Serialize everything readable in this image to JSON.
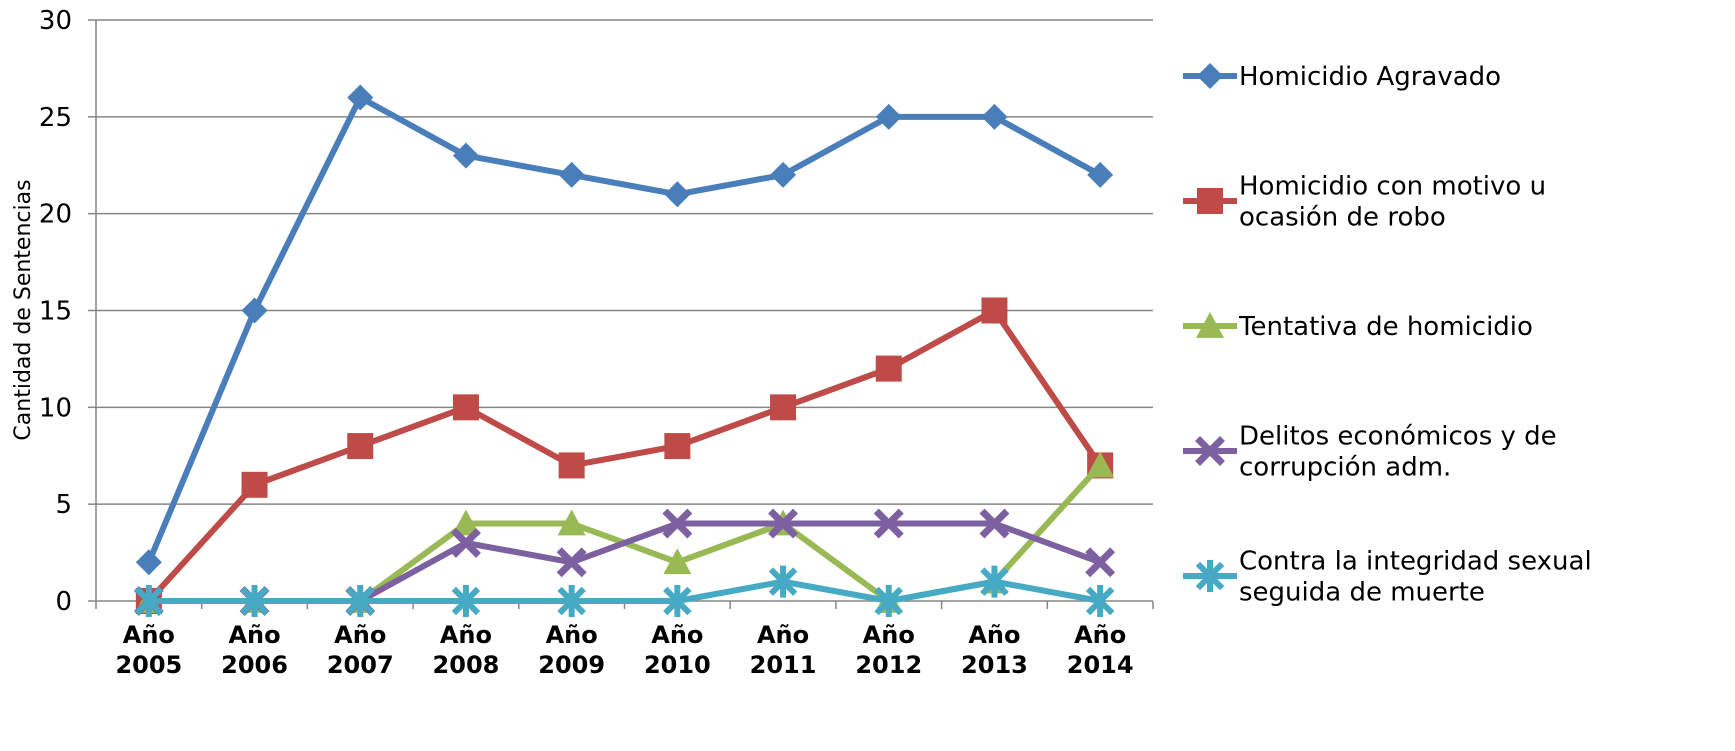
{
  "chart_data": {
    "type": "line",
    "title": "",
    "xlabel": "",
    "ylabel": "Cantidad de Sentencias",
    "ylim": [
      0,
      30
    ],
    "yticks": [
      0,
      5,
      10,
      15,
      20,
      25,
      30
    ],
    "grid": true,
    "legend_position": "right",
    "categories": [
      [
        "Año",
        "2005"
      ],
      [
        "Año",
        "2006"
      ],
      [
        "Año",
        "2007"
      ],
      [
        "Año",
        "2008"
      ],
      [
        "Año",
        "2009"
      ],
      [
        "Año",
        "2010"
      ],
      [
        "Año",
        "2011"
      ],
      [
        "Año",
        "2012"
      ],
      [
        "Año",
        "2013"
      ],
      [
        "Año",
        "2014"
      ]
    ],
    "series": [
      {
        "name": "Homicidio Agravado",
        "legend_lines": [
          "Homicidio Agravado"
        ],
        "color": "#4a7ebb",
        "marker": "diamond",
        "values": [
          2,
          15,
          26,
          23,
          22,
          21,
          22,
          25,
          25,
          22
        ]
      },
      {
        "name": "Homicidio con motivo u ocasión de robo",
        "legend_lines": [
          "Homicidio con motivo u",
          "ocasión de robo"
        ],
        "color": "#be4b48",
        "marker": "square",
        "values": [
          0,
          6,
          8,
          10,
          7,
          8,
          10,
          12,
          15,
          7
        ]
      },
      {
        "name": "Tentativa de homicidio",
        "legend_lines": [
          "Tentativa de homicidio"
        ],
        "color": "#98b954",
        "marker": "triangle",
        "values": [
          0,
          0,
          0,
          4,
          4,
          2,
          4,
          0,
          1,
          7
        ]
      },
      {
        "name": "Delitos económicos y de corrupción adm.",
        "legend_lines": [
          "Delitos económicos y de",
          "corrupción adm."
        ],
        "color": "#7d60a0",
        "marker": "x",
        "values": [
          0,
          0,
          0,
          3,
          2,
          4,
          4,
          4,
          4,
          2
        ]
      },
      {
        "name": "Contra la integridad sexual seguida de muerte",
        "legend_lines": [
          "Contra la integridad sexual",
          "seguida de muerte"
        ],
        "color": "#46aac5",
        "marker": "star",
        "values": [
          0,
          0,
          0,
          0,
          0,
          0,
          1,
          0,
          1,
          0
        ]
      }
    ]
  }
}
